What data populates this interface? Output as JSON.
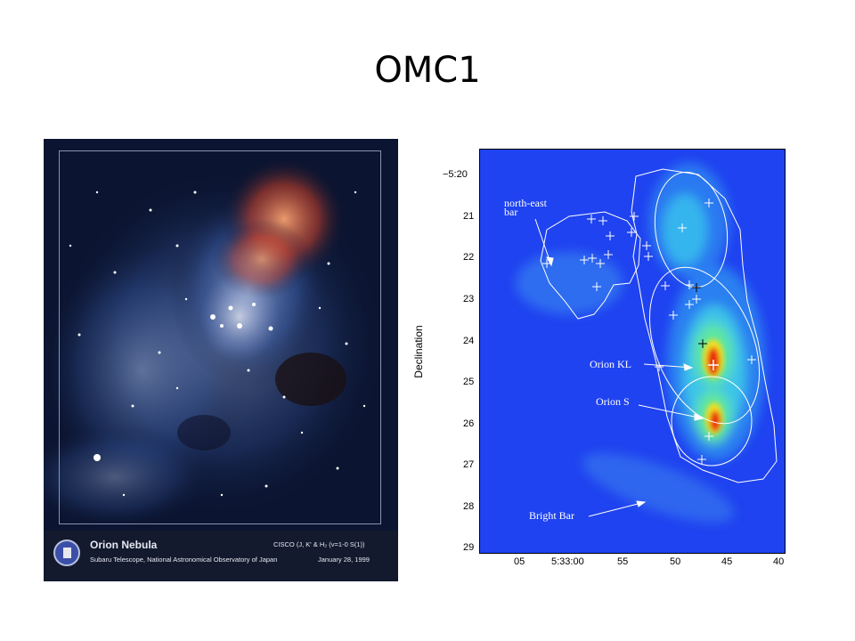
{
  "slide": {
    "title": "OMC1"
  },
  "photo": {
    "title": "Orion Nebula",
    "instrument": "CISCO (J, K' & H₂ (v=1-0 S(1))",
    "credit": "Subaru Telescope, National Astronomical Observatory of Japan",
    "date": "January 28, 1999"
  },
  "map": {
    "ylabel": "Declination",
    "yticks": [
      "−5:20",
      "21",
      "22",
      "23",
      "24",
      "25",
      "26",
      "27",
      "28",
      "29"
    ],
    "xticks": [
      "05",
      "5:33:00",
      "55",
      "50",
      "45",
      "40"
    ],
    "labels": {
      "ne_bar_1": "north-east",
      "ne_bar_2": "bar",
      "orion_kl": "Orion KL",
      "orion_s": "Orion S",
      "bright_bar": "Bright Bar"
    }
  },
  "colors": {
    "map_background": "#1f43f0",
    "peak": "#e01010",
    "contour": "#ffffff"
  }
}
